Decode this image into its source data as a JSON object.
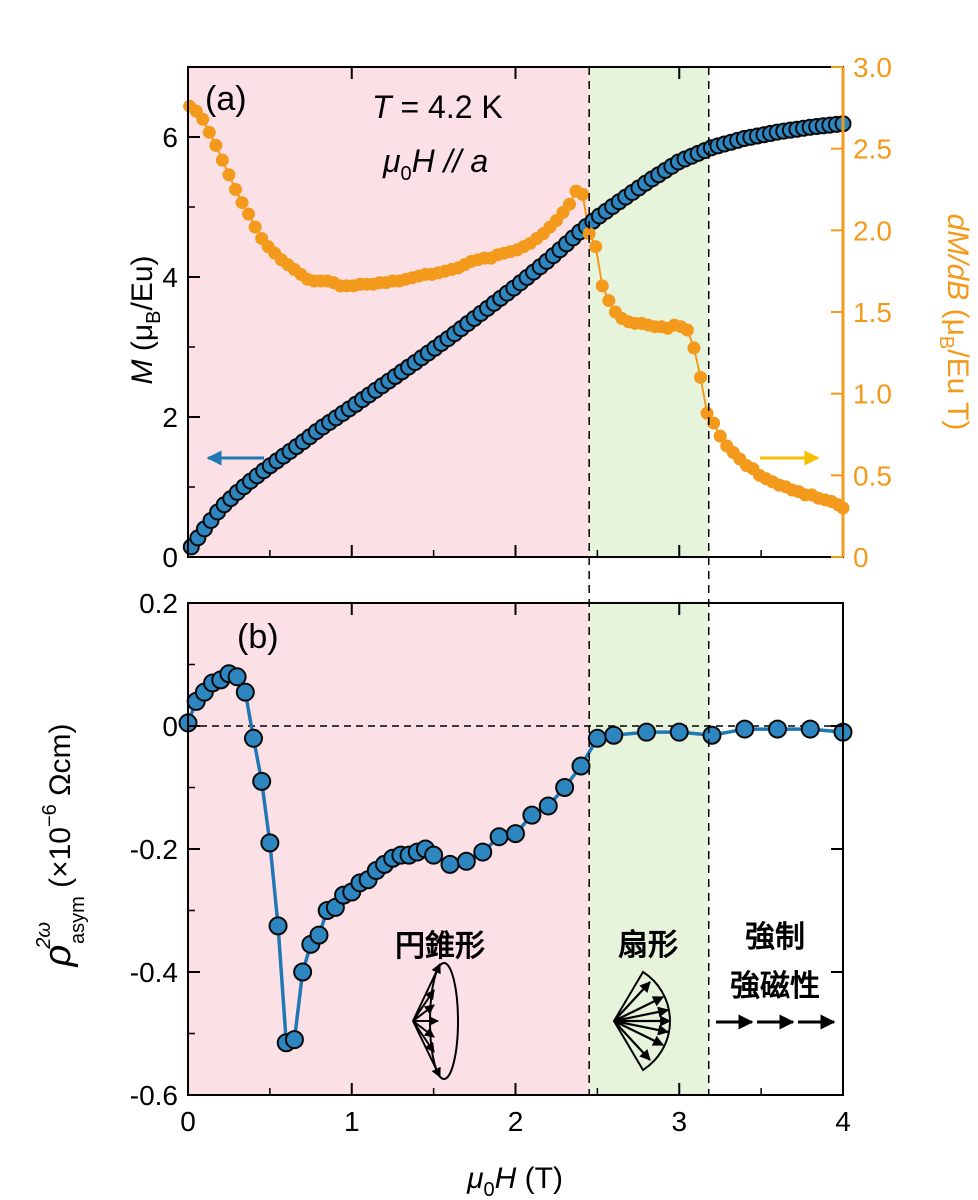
{
  "colors": {
    "blue_line": "#1f78b4",
    "blue_marker": "#2e86c1",
    "orange": "#f39a1c",
    "pink_region": "#fbe1e6",
    "green_region": "#e7f4dc",
    "yellow_arrow": "#f5c000",
    "axis": "#000000"
  },
  "annotations": {
    "temperature_T": "T",
    "temperature_rest": " = 4.2 K",
    "field_mu": "μ",
    "field_sub": "0",
    "field_H": "H",
    "field_rest": " // a",
    "phase_conical": "円錐形",
    "phase_fan": "扇形",
    "phase_ferro_line1": "強制",
    "phase_ferro_line2": "強磁性"
  },
  "chart_data": [
    {
      "panel": "(a)",
      "type": "scatter",
      "xlim": [
        0,
        4
      ],
      "ylim": [
        0,
        7
      ],
      "y2lim": [
        0,
        3.0
      ],
      "xticks": [
        0,
        1,
        2,
        3,
        4
      ],
      "yticks": [
        "0",
        "2",
        "4",
        "6"
      ],
      "yticks_values": [
        0,
        2,
        4,
        6
      ],
      "y2ticks": [
        "0",
        "0.5",
        "1.0",
        "1.5",
        "2.0",
        "2.5",
        "3.0"
      ],
      "y2ticks_values": [
        0,
        0.5,
        1.0,
        1.5,
        2.0,
        2.5,
        3.0
      ],
      "ylabel_parts": {
        "main": "M",
        "open": " (μ",
        "sub": "B",
        "close": "/Eu)"
      },
      "y2label_parts": {
        "main": "dM/dB",
        "open": " (μ",
        "sub": "B",
        "close": "/Eu T)"
      },
      "regions": [
        {
          "name": "conical",
          "x": [
            0,
            2.45
          ]
        },
        {
          "name": "fan",
          "x": [
            2.45,
            3.18
          ]
        },
        {
          "name": "forced-ferro",
          "x": [
            3.18,
            4.0
          ]
        }
      ],
      "boundaries": [
        2.45,
        3.18
      ],
      "series": [
        {
          "name": "M",
          "axis": "left",
          "x_start": 0.02,
          "x_end": 4.0,
          "points": 100,
          "anchors": {
            "x": [
              0.0,
              0.1,
              0.2,
              0.3,
              0.4,
              0.5,
              0.6,
              0.7,
              0.8,
              0.9,
              1.0,
              1.2,
              1.4,
              1.6,
              1.8,
              2.0,
              2.2,
              2.4,
              2.5,
              2.6,
              2.8,
              3.0,
              3.2,
              3.4,
              3.6,
              3.8,
              4.0
            ],
            "y": [
              0.08,
              0.4,
              0.7,
              0.92,
              1.12,
              1.3,
              1.47,
              1.64,
              1.82,
              1.98,
              2.14,
              2.47,
              2.8,
              3.14,
              3.5,
              3.86,
              4.24,
              4.66,
              4.85,
              5.02,
              5.35,
              5.65,
              5.85,
              5.98,
              6.07,
              6.14,
              6.19
            ]
          }
        },
        {
          "name": "dM/dB",
          "axis": "right",
          "x": [
            0.01,
            0.05,
            0.09,
            0.13,
            0.17,
            0.21,
            0.25,
            0.29,
            0.33,
            0.37,
            0.41,
            0.45,
            0.49,
            0.53,
            0.57,
            0.61,
            0.65,
            0.69,
            0.73,
            0.77,
            0.81,
            0.85,
            0.89,
            0.93,
            0.97,
            1.01,
            1.05,
            1.09,
            1.13,
            1.17,
            1.21,
            1.25,
            1.29,
            1.33,
            1.37,
            1.41,
            1.45,
            1.49,
            1.53,
            1.57,
            1.61,
            1.65,
            1.69,
            1.73,
            1.77,
            1.81,
            1.85,
            1.89,
            1.93,
            1.97,
            2.01,
            2.05,
            2.09,
            2.13,
            2.17,
            2.21,
            2.25,
            2.29,
            2.33,
            2.37,
            2.41,
            2.45,
            2.49,
            2.53,
            2.57,
            2.61,
            2.65,
            2.69,
            2.73,
            2.77,
            2.81,
            2.85,
            2.89,
            2.93,
            2.97,
            3.01,
            3.05,
            3.09,
            3.13,
            3.17,
            3.21,
            3.25,
            3.29,
            3.33,
            3.37,
            3.41,
            3.45,
            3.49,
            3.53,
            3.57,
            3.61,
            3.65,
            3.69,
            3.73,
            3.77,
            3.81,
            3.85,
            3.89,
            3.93,
            3.97,
            4.0
          ],
          "y": [
            2.76,
            2.73,
            2.68,
            2.6,
            2.52,
            2.43,
            2.34,
            2.25,
            2.17,
            2.1,
            2.02,
            1.95,
            1.9,
            1.86,
            1.82,
            1.79,
            1.76,
            1.73,
            1.7,
            1.69,
            1.69,
            1.69,
            1.68,
            1.66,
            1.66,
            1.66,
            1.67,
            1.67,
            1.67,
            1.68,
            1.68,
            1.69,
            1.69,
            1.7,
            1.71,
            1.72,
            1.73,
            1.73,
            1.74,
            1.75,
            1.76,
            1.77,
            1.79,
            1.81,
            1.82,
            1.83,
            1.83,
            1.85,
            1.86,
            1.87,
            1.88,
            1.9,
            1.92,
            1.95,
            1.98,
            2.02,
            2.06,
            2.11,
            2.16,
            2.24,
            2.22,
            1.98,
            1.9,
            1.66,
            1.57,
            1.5,
            1.46,
            1.44,
            1.43,
            1.43,
            1.42,
            1.41,
            1.41,
            1.4,
            1.42,
            1.41,
            1.39,
            1.28,
            1.1,
            0.88,
            0.82,
            0.74,
            0.68,
            0.64,
            0.6,
            0.56,
            0.54,
            0.5,
            0.48,
            0.46,
            0.44,
            0.43,
            0.41,
            0.4,
            0.38,
            0.38,
            0.36,
            0.35,
            0.34,
            0.32,
            0.3
          ]
        }
      ]
    },
    {
      "panel": "(b)",
      "type": "line",
      "xlim": [
        0,
        4
      ],
      "ylim": [
        -0.6,
        0.2
      ],
      "xticks": [
        "0",
        "1",
        "2",
        "3",
        "4"
      ],
      "xticks_values": [
        0,
        1,
        2,
        3,
        4
      ],
      "yticks": [
        "-0.6",
        "-0.4",
        "-0.2",
        "0",
        "0.2"
      ],
      "yticks_values": [
        -0.6,
        -0.4,
        -0.2,
        0,
        0.2
      ],
      "xlabel_parts": {
        "mu": "μ",
        "sub": "0",
        "main": "H",
        "rest": " (T)"
      },
      "ylabel_parts": {
        "rho": "ρ",
        "sup": "2ω",
        "sub": "asym",
        "open": " (×10",
        "exp": "−6",
        "close": " Ωcm)"
      },
      "zero_line": true,
      "series": [
        {
          "name": "rho",
          "x": [
            0.0,
            0.05,
            0.1,
            0.15,
            0.2,
            0.25,
            0.3,
            0.35,
            0.4,
            0.45,
            0.5,
            0.55,
            0.6,
            0.65,
            0.7,
            0.75,
            0.8,
            0.85,
            0.9,
            0.95,
            1.0,
            1.05,
            1.1,
            1.15,
            1.2,
            1.25,
            1.3,
            1.35,
            1.4,
            1.45,
            1.5,
            1.6,
            1.7,
            1.8,
            1.9,
            2.0,
            2.1,
            2.2,
            2.3,
            2.4,
            2.5,
            2.6,
            2.8,
            3.0,
            3.2,
            3.4,
            3.6,
            3.8,
            4.0
          ],
          "y": [
            0.005,
            0.04,
            0.055,
            0.07,
            0.075,
            0.085,
            0.08,
            0.055,
            -0.02,
            -0.09,
            -0.19,
            -0.325,
            -0.515,
            -0.51,
            -0.4,
            -0.355,
            -0.34,
            -0.3,
            -0.295,
            -0.275,
            -0.27,
            -0.255,
            -0.25,
            -0.235,
            -0.225,
            -0.215,
            -0.21,
            -0.21,
            -0.205,
            -0.2,
            -0.21,
            -0.225,
            -0.22,
            -0.205,
            -0.18,
            -0.175,
            -0.145,
            -0.13,
            -0.1,
            -0.065,
            -0.02,
            -0.015,
            -0.01,
            -0.01,
            -0.015,
            -0.005,
            -0.005,
            -0.005,
            -0.01
          ]
        }
      ]
    }
  ]
}
